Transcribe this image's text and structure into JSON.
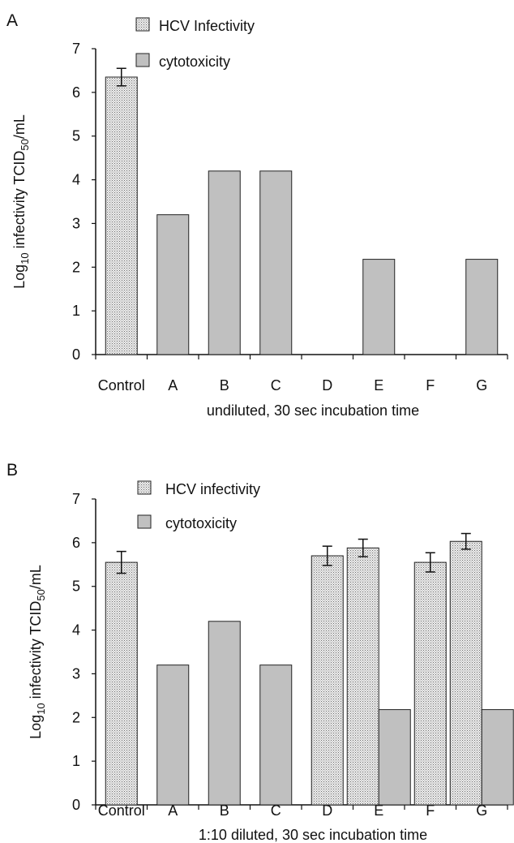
{
  "chart_data": [
    {
      "type": "bar",
      "panel_label": "A",
      "categories": [
        "Control",
        "A",
        "B",
        "C",
        "D",
        "E",
        "F",
        "G"
      ],
      "series": [
        {
          "name": "HCV Infectivity",
          "values": [
            6.35,
            null,
            null,
            null,
            null,
            null,
            null,
            null
          ],
          "errors": [
            0.2,
            null,
            null,
            null,
            null,
            null,
            null,
            null
          ],
          "color": "#e4e4e4",
          "pattern": "dotted"
        },
        {
          "name": "cytotoxicity",
          "values": [
            null,
            3.2,
            4.2,
            4.2,
            null,
            2.18,
            null,
            2.18
          ],
          "color": "#c0c0c0"
        }
      ],
      "xlabel": "undiluted, 30 sec incubation time",
      "ylabel_parts": {
        "pre": "Log",
        "sub1": "10",
        "mid": " infectivity TCID",
        "sub2": "50",
        "post": "/mL"
      },
      "ylim": [
        0,
        7
      ],
      "yticks": [
        "0",
        "1",
        "2",
        "3",
        "4",
        "5",
        "6",
        "7"
      ],
      "grid": false,
      "legend_position": "top-left"
    },
    {
      "type": "bar",
      "panel_label": "B",
      "categories": [
        "Control",
        "A",
        "B",
        "C",
        "D",
        "E",
        "F",
        "G"
      ],
      "series": [
        {
          "name": "HCV infectivity",
          "values": [
            5.55,
            null,
            null,
            null,
            5.7,
            5.88,
            5.55,
            6.03
          ],
          "errors": [
            0.25,
            null,
            null,
            null,
            0.22,
            0.2,
            0.22,
            0.18
          ],
          "color": "#e4e4e4",
          "pattern": "dotted"
        },
        {
          "name": "cytotoxicity",
          "values": [
            null,
            3.2,
            4.2,
            3.2,
            null,
            2.18,
            null,
            2.18
          ],
          "color": "#c0c0c0"
        }
      ],
      "xlabel": "1:10 diluted, 30 sec incubation time",
      "ylabel_parts": {
        "pre": "Log",
        "sub1": "10",
        "mid": " infectivity TCID",
        "sub2": "50",
        "post": "/mL"
      },
      "ylim": [
        0,
        7
      ],
      "yticks": [
        "0",
        "1",
        "2",
        "3",
        "4",
        "5",
        "6",
        "7"
      ],
      "grid": false,
      "legend_position": "top-left"
    }
  ]
}
